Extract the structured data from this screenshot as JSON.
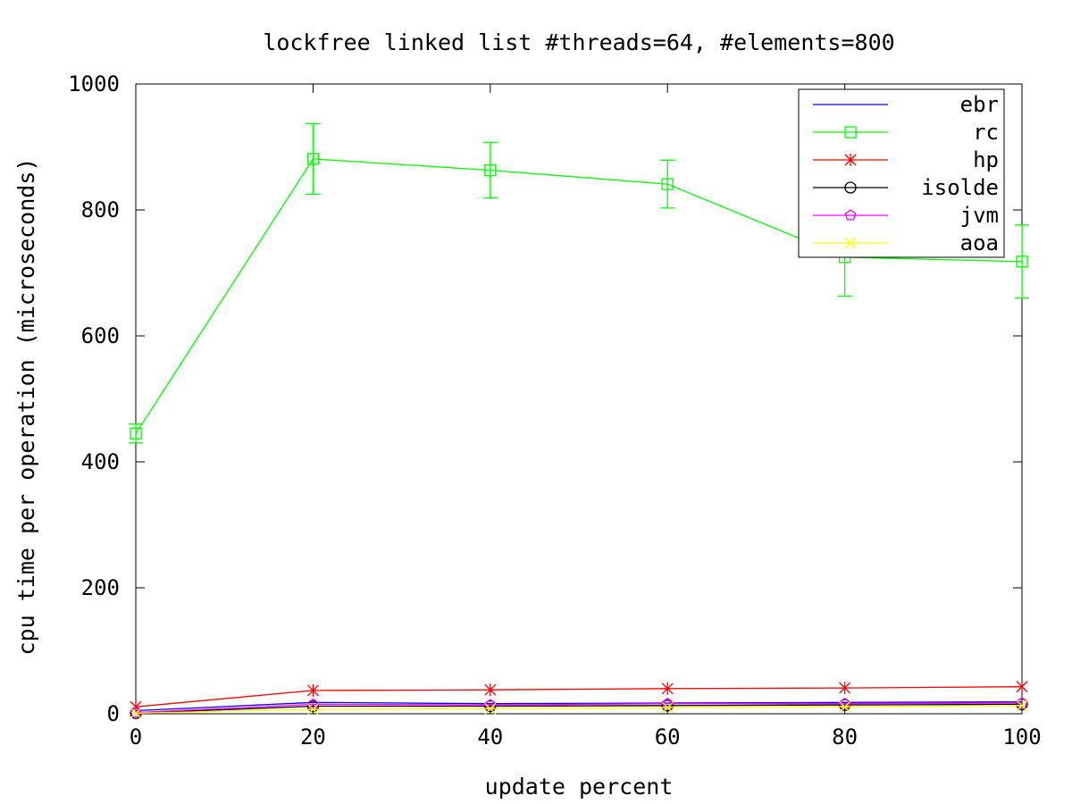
{
  "chart_data": {
    "type": "line",
    "title": "lockfree linked list #threads=64, #elements=800",
    "xlabel": "update percent",
    "ylabel": "cpu time per operation (microseconds)",
    "xlim": [
      0,
      100
    ],
    "ylim": [
      0,
      1000
    ],
    "x_ticks": [
      0,
      20,
      40,
      60,
      80,
      100
    ],
    "y_ticks": [
      0,
      200,
      400,
      600,
      800,
      1000
    ],
    "x": [
      0,
      20,
      40,
      60,
      80,
      100
    ],
    "grid": false,
    "legend_position": "top-right",
    "series": [
      {
        "name": "ebr",
        "color": "#0000ff",
        "marker": "none",
        "values": [
          5,
          18,
          16,
          17,
          18,
          19
        ],
        "error": [
          0,
          0,
          0,
          0,
          0,
          0
        ]
      },
      {
        "name": "rc",
        "color": "#00ff00",
        "marker": "square",
        "values": [
          445,
          881,
          863,
          841,
          725,
          718
        ],
        "error": [
          15,
          56,
          44,
          38,
          62,
          58
        ]
      },
      {
        "name": "hp",
        "color": "#ff0000",
        "marker": "star",
        "values": [
          11,
          37,
          38,
          40,
          41,
          43
        ],
        "error": [
          0,
          0,
          0,
          0,
          0,
          0
        ]
      },
      {
        "name": "isolde",
        "color": "#000000",
        "marker": "circle",
        "values": [
          1,
          12,
          12,
          13,
          14,
          15
        ],
        "error": [
          0,
          0,
          0,
          0,
          0,
          0
        ]
      },
      {
        "name": "jvm",
        "color": "#ff00ff",
        "marker": "pentagon",
        "values": [
          2,
          15,
          14,
          16,
          16,
          17
        ],
        "error": [
          0,
          0,
          0,
          0,
          0,
          0
        ]
      },
      {
        "name": "aoa",
        "color": "#ffff00",
        "marker": "x",
        "values": [
          1,
          7,
          8,
          10,
          11,
          13
        ],
        "error": [
          0,
          0,
          0,
          0,
          0,
          0
        ]
      }
    ]
  }
}
